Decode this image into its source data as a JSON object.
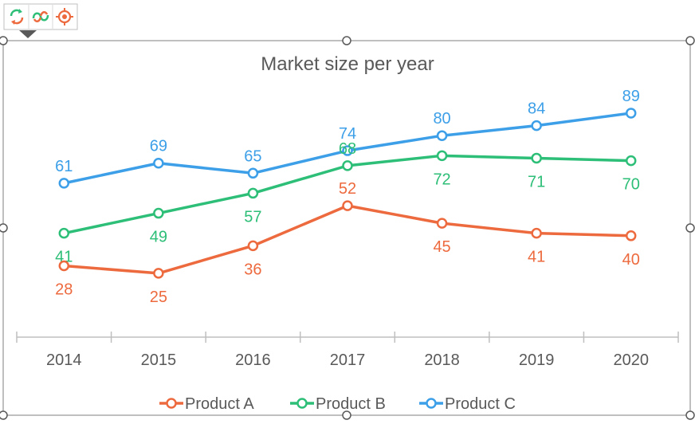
{
  "toolbar": {
    "buttons": [
      {
        "icon": "refresh-icon"
      },
      {
        "icon": "link-icon"
      },
      {
        "icon": "target-icon"
      }
    ]
  },
  "colors": {
    "product_a": "#ED6A3E",
    "product_b": "#2DBE77",
    "product_c": "#3C9FE8",
    "axis": "#BFBFBF",
    "text": "#595959",
    "frame": "#7F7F7F"
  },
  "chart_data": {
    "type": "line",
    "title": "Market size per year",
    "xlabel": "",
    "ylabel": "",
    "categories": [
      "2014",
      "2015",
      "2016",
      "2017",
      "2018",
      "2019",
      "2020"
    ],
    "ylim": [
      0,
      100
    ],
    "grid": false,
    "legend": "bottom",
    "series": [
      {
        "name": "Product A",
        "color": "#ED6A3E",
        "values": [
          28,
          25,
          36,
          52,
          45,
          41,
          40
        ]
      },
      {
        "name": "Product B",
        "color": "#2DBE77",
        "values": [
          41,
          49,
          57,
          68,
          72,
          71,
          70
        ]
      },
      {
        "name": "Product C",
        "color": "#3C9FE8",
        "values": [
          61,
          69,
          65,
          74,
          80,
          84,
          89
        ]
      }
    ]
  }
}
